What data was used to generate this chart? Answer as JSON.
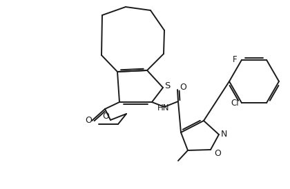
{
  "bg_color": "#ffffff",
  "bond_color": "#1a1a1a",
  "figsize": [
    4.2,
    2.74
  ],
  "dpi": 100,
  "atoms": {
    "S_label": "S",
    "N_label": "N",
    "O_label": "O",
    "HN_label": "HN",
    "F_label": "F",
    "Cl_label": "Cl"
  }
}
